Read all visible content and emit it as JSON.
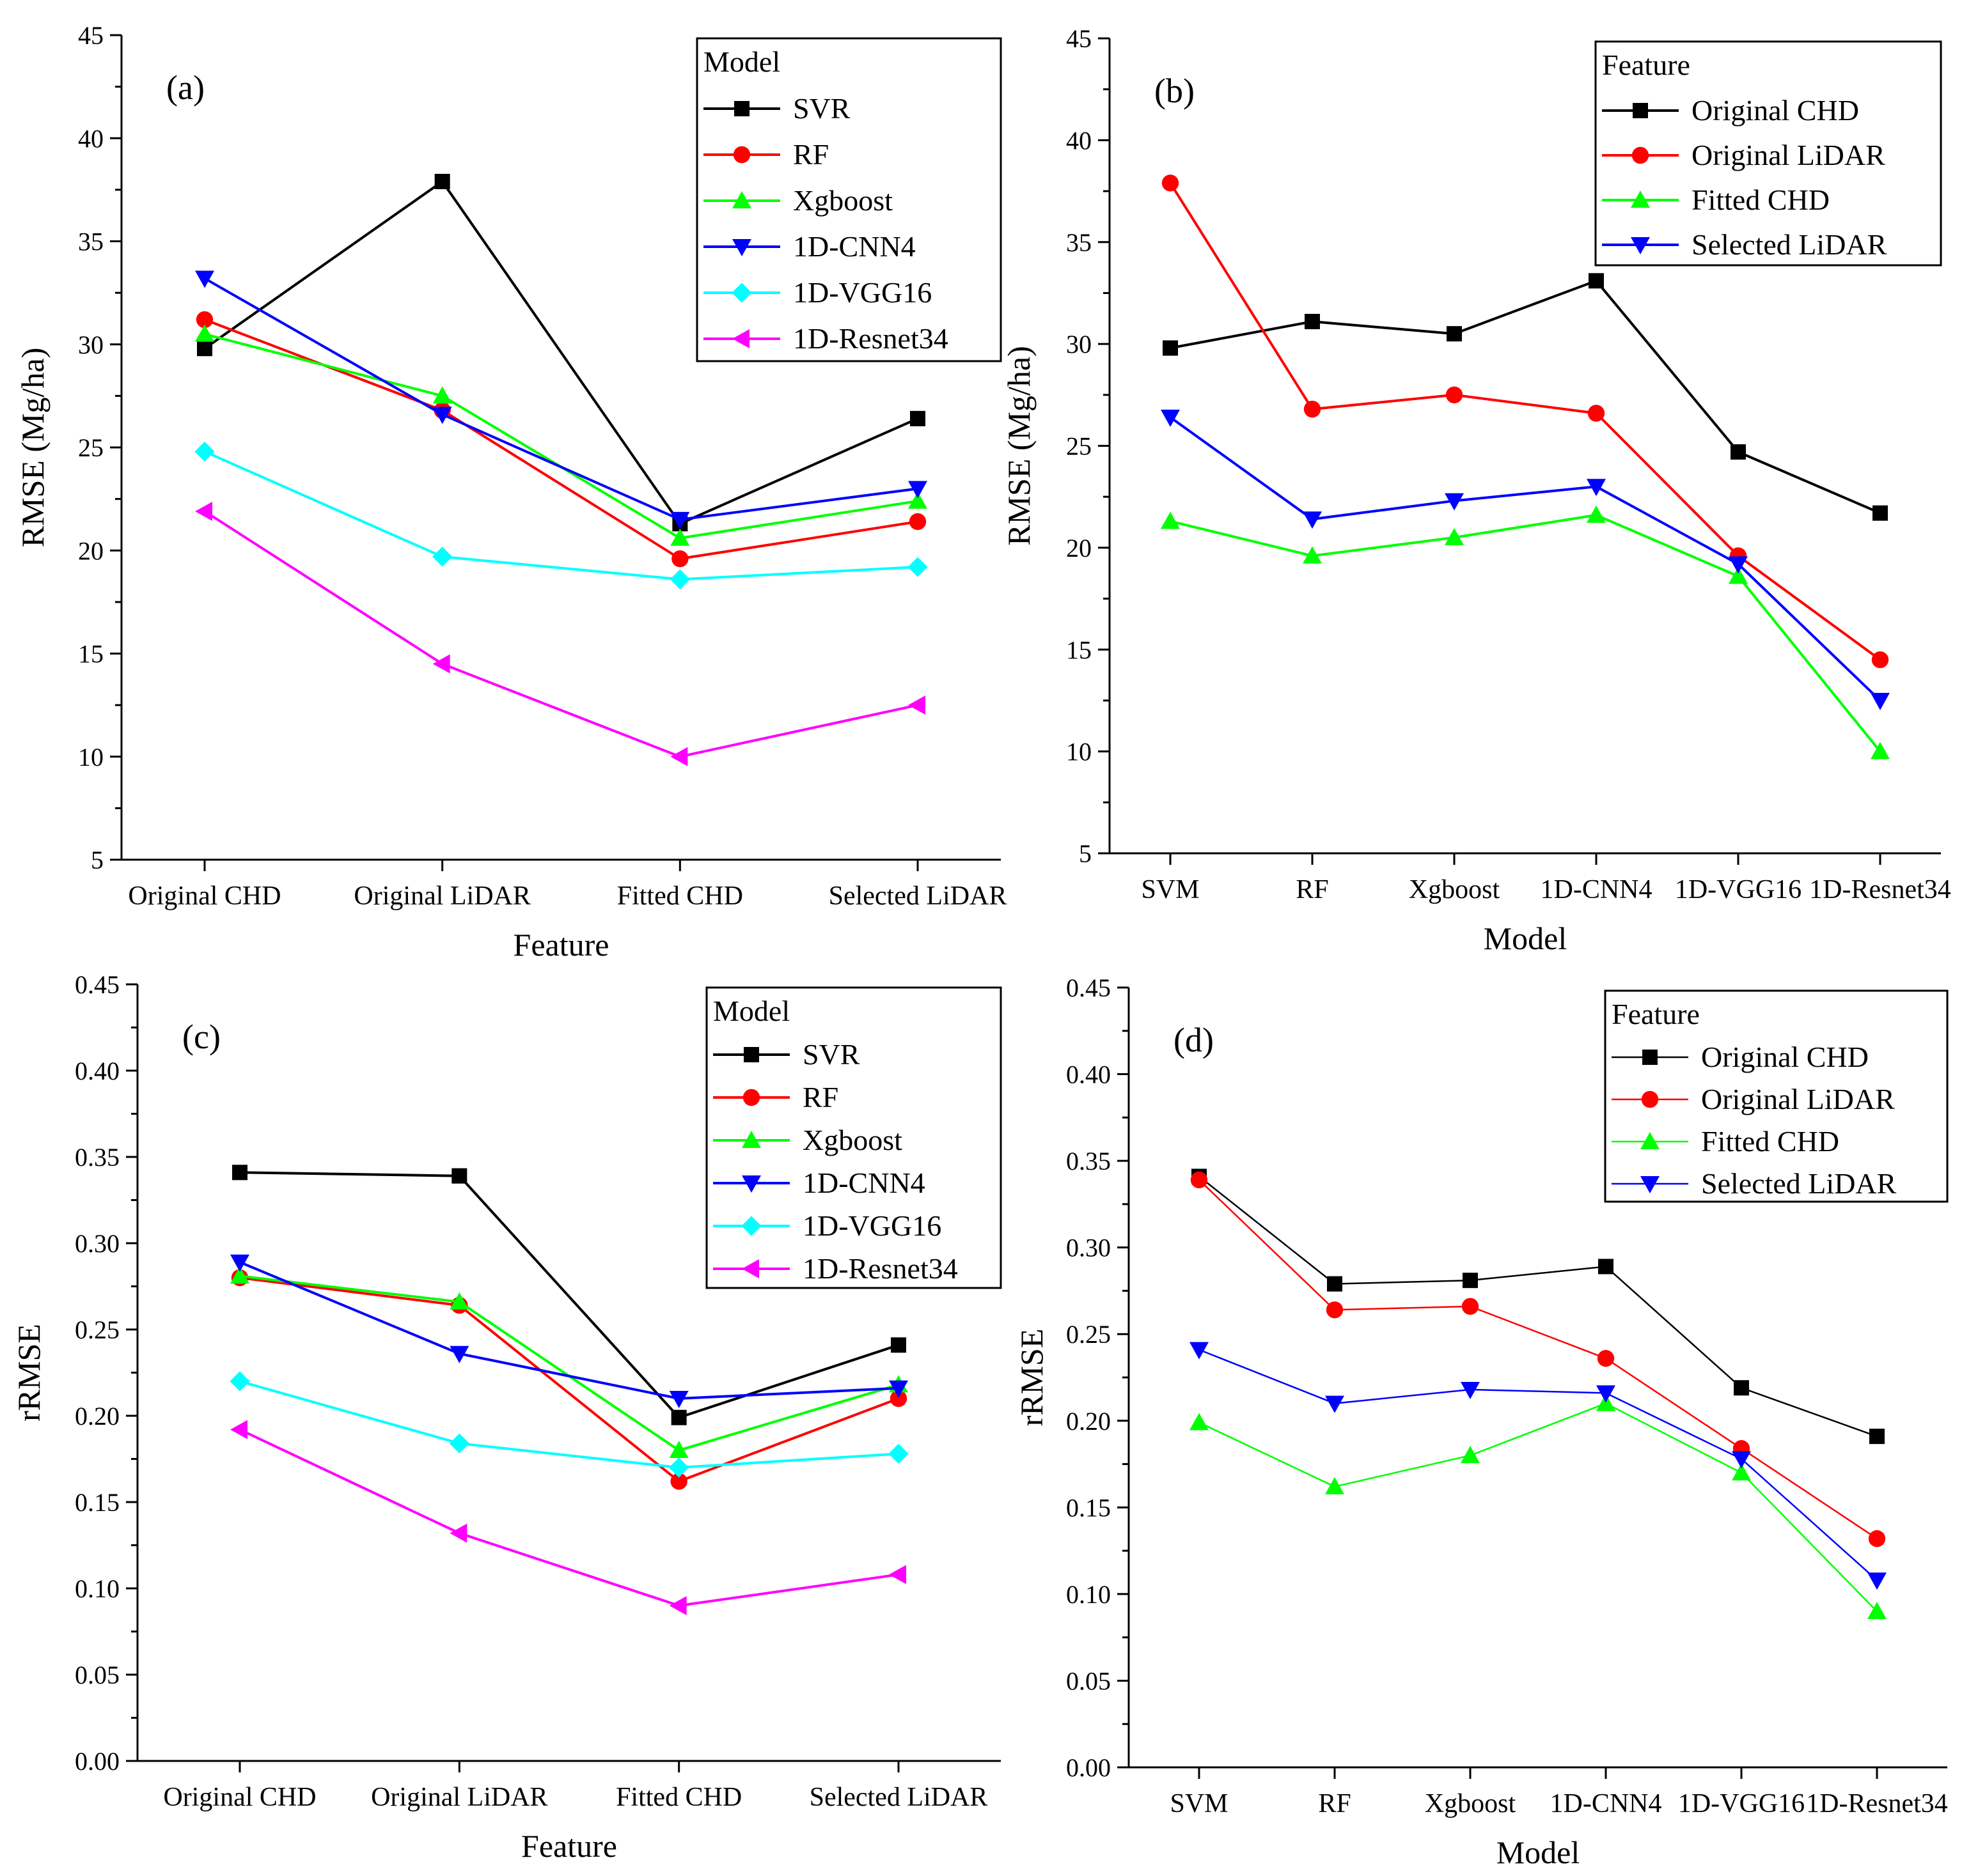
{
  "chart_data": [
    {
      "type": "line",
      "panel_label": "(a)",
      "xlabel": "Feature",
      "ylabel": "RMSE  (Mg/ha)",
      "ylim": [
        5,
        45
      ],
      "yticks": [
        "5",
        "10",
        "15",
        "20",
        "25",
        "30",
        "35",
        "40",
        "45"
      ],
      "categories": [
        "Original CHD",
        "Original LiDAR",
        "Fitted CHD",
        "Selected LiDAR"
      ],
      "legend_title": "Model",
      "legend_position": "top-right",
      "series": [
        {
          "name": "SVR",
          "color": "#000000",
          "marker": "square",
          "values": [
            29.8,
            37.9,
            21.3,
            26.4
          ]
        },
        {
          "name": "RF",
          "color": "#ff0000",
          "marker": "circle",
          "values": [
            31.2,
            26.8,
            19.6,
            21.4
          ]
        },
        {
          "name": "Xgboost",
          "color": "#00ff00",
          "marker": "triangle-up",
          "values": [
            30.5,
            27.5,
            20.6,
            22.4
          ]
        },
        {
          "name": "1D-CNN4",
          "color": "#0000ff",
          "marker": "triangle-down",
          "values": [
            33.2,
            26.6,
            21.5,
            23.0
          ]
        },
        {
          "name": "1D-VGG16",
          "color": "#00ffff",
          "marker": "diamond",
          "values": [
            24.8,
            19.7,
            18.6,
            19.2
          ]
        },
        {
          "name": "1D-Resnet34",
          "color": "#ff00ff",
          "marker": "triangle-left",
          "values": [
            21.9,
            14.5,
            10.0,
            12.5
          ]
        }
      ]
    },
    {
      "type": "line",
      "panel_label": "(b)",
      "xlabel": "Model",
      "ylabel": "RMSE  (Mg/ha)",
      "ylim": [
        5,
        45
      ],
      "yticks": [
        "5",
        "10",
        "15",
        "20",
        "25",
        "30",
        "35",
        "40",
        "45"
      ],
      "categories": [
        "SVM",
        "RF",
        "Xgboost",
        "1D-CNN4",
        "1D-VGG16",
        "1D-Resnet34"
      ],
      "legend_title": "Feature",
      "legend_position": "top-right",
      "series": [
        {
          "name": "Original CHD",
          "color": "#000000",
          "marker": "square",
          "values": [
            29.8,
            31.1,
            30.5,
            33.1,
            24.7,
            21.7
          ]
        },
        {
          "name": "Original LiDAR",
          "color": "#ff0000",
          "marker": "circle",
          "values": [
            37.9,
            26.8,
            27.5,
            26.6,
            19.6,
            14.5
          ]
        },
        {
          "name": "Fitted CHD",
          "color": "#00ff00",
          "marker": "triangle-up",
          "values": [
            21.3,
            19.6,
            20.5,
            21.6,
            18.6,
            10.0
          ]
        },
        {
          "name": "Selected LiDAR",
          "color": "#0000ff",
          "marker": "triangle-down",
          "values": [
            26.4,
            21.4,
            22.3,
            23.0,
            19.2,
            12.5
          ]
        }
      ]
    },
    {
      "type": "line",
      "panel_label": "(c)",
      "xlabel": "Feature",
      "ylabel": "rRMSE",
      "ylim": [
        0,
        0.45
      ],
      "yticks": [
        "0.00",
        "0.05",
        "0.10",
        "0.15",
        "0.20",
        "0.25",
        "0.30",
        "0.35",
        "0.40",
        "0.45"
      ],
      "categories": [
        "Original CHD",
        "Original LiDAR",
        "Fitted CHD",
        "Selected LiDAR"
      ],
      "legend_title": "Model",
      "legend_position": "top-right",
      "series": [
        {
          "name": "SVR",
          "color": "#000000",
          "marker": "square",
          "values": [
            0.341,
            0.339,
            0.199,
            0.241
          ]
        },
        {
          "name": "RF",
          "color": "#ff0000",
          "marker": "circle",
          "values": [
            0.28,
            0.264,
            0.162,
            0.21
          ]
        },
        {
          "name": "Xgboost",
          "color": "#00ff00",
          "marker": "triangle-up",
          "values": [
            0.281,
            0.266,
            0.18,
            0.218
          ]
        },
        {
          "name": "1D-CNN4",
          "color": "#0000ff",
          "marker": "triangle-down",
          "values": [
            0.289,
            0.236,
            0.21,
            0.216
          ]
        },
        {
          "name": "1D-VGG16",
          "color": "#00ffff",
          "marker": "diamond",
          "values": [
            0.22,
            0.184,
            0.17,
            0.178
          ]
        },
        {
          "name": "1D-Resnet34",
          "color": "#ff00ff",
          "marker": "triangle-left",
          "values": [
            0.192,
            0.132,
            0.09,
            0.108
          ]
        }
      ]
    },
    {
      "type": "line",
      "panel_label": "(d)",
      "xlabel": "Model",
      "ylabel": "rRMSE",
      "ylim": [
        0,
        0.45
      ],
      "yticks": [
        "0.00",
        "0.05",
        "0.10",
        "0.15",
        "0.20",
        "0.25",
        "0.30",
        "0.35",
        "0.40",
        "0.45"
      ],
      "categories": [
        "SVM",
        "RF",
        "Xgboost",
        "1D-CNN4",
        "1D-VGG16",
        "1D-Resnet34"
      ],
      "legend_title": "Feature",
      "legend_position": "top-right",
      "series": [
        {
          "name": "Original CHD",
          "color": "#000000",
          "marker": "square",
          "values": [
            0.341,
            0.279,
            0.281,
            0.289,
            0.219,
            0.191
          ]
        },
        {
          "name": "Original LiDAR",
          "color": "#ff0000",
          "marker": "circle",
          "values": [
            0.339,
            0.264,
            0.266,
            0.236,
            0.184,
            0.132
          ]
        },
        {
          "name": "Fitted CHD",
          "color": "#00ff00",
          "marker": "triangle-up",
          "values": [
            0.199,
            0.162,
            0.18,
            0.21,
            0.17,
            0.09
          ]
        },
        {
          "name": "Selected LiDAR",
          "color": "#0000ff",
          "marker": "triangle-down",
          "values": [
            0.241,
            0.21,
            0.218,
            0.216,
            0.178,
            0.108
          ]
        }
      ]
    }
  ]
}
